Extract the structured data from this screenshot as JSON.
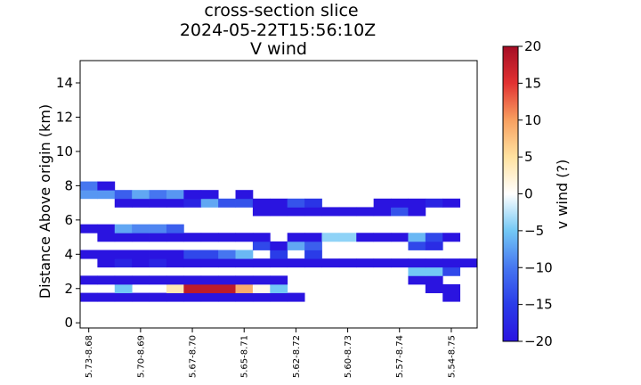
{
  "chart_data": {
    "type": "heatmap",
    "title": [
      "cross-section slice",
      "2024-05-22T15:56:10Z",
      "V wind"
    ],
    "xlabel": "",
    "ylabel": "Distance Above origin (km)",
    "x_tick_labels": [
      "5.73-8.68",
      "5.70-8.69",
      "5.67-8.70",
      "5.65-8.71",
      "5.62-8.72",
      "5.60-8.73",
      "5.57-8.74",
      "5.54-8.75"
    ],
    "y_ticks": [
      0,
      2,
      4,
      6,
      8,
      10,
      12,
      14
    ],
    "ylim": [
      -0.3,
      15.3
    ],
    "x_columns": 23,
    "row_height_km": 0.5,
    "colorbar": {
      "label": "v wind (?)",
      "range": [
        -20,
        20
      ],
      "ticks": [
        20,
        15,
        10,
        5,
        0,
        -5,
        -10,
        -15,
        -20
      ],
      "colormap": "RdYlBu_r",
      "stops": [
        [
          -20,
          "#2a14e0"
        ],
        [
          -15,
          "#2a3ce8"
        ],
        [
          -10,
          "#4676f0"
        ],
        [
          -5,
          "#73c8f5"
        ],
        [
          0,
          "#ffffff"
        ],
        [
          5,
          "#ffe2a0"
        ],
        [
          10,
          "#f8a060"
        ],
        [
          15,
          "#e23232"
        ],
        [
          20,
          "#a50d25"
        ]
      ]
    },
    "rows": [
      {
        "y": 1.5,
        "cells": [
          [
            0,
            -20
          ],
          [
            1,
            -20
          ],
          [
            2,
            -20
          ],
          [
            3,
            -20
          ],
          [
            4,
            -20
          ],
          [
            5,
            -20
          ],
          [
            6,
            -20
          ],
          [
            7,
            -20
          ],
          [
            8,
            -20
          ],
          [
            9,
            -20
          ],
          [
            10,
            -20
          ],
          [
            11,
            -20
          ],
          [
            12,
            -20
          ],
          [
            21,
            -20
          ]
        ]
      },
      {
        "y": 2.0,
        "cells": [
          [
            2,
            -5
          ],
          [
            5,
            4
          ],
          [
            6,
            18
          ],
          [
            7,
            18
          ],
          [
            8,
            18
          ],
          [
            9,
            9
          ],
          [
            10,
            1
          ],
          [
            11,
            -5
          ],
          [
            20,
            -20
          ],
          [
            21,
            -20
          ]
        ]
      },
      {
        "y": 2.5,
        "cells": [
          [
            0,
            -20
          ],
          [
            1,
            -20
          ],
          [
            2,
            -20
          ],
          [
            3,
            -20
          ],
          [
            4,
            -20
          ],
          [
            5,
            -20
          ],
          [
            6,
            -20
          ],
          [
            7,
            -20
          ],
          [
            8,
            -20
          ],
          [
            9,
            -20
          ],
          [
            10,
            -20
          ],
          [
            11,
            -20
          ],
          [
            19,
            -20
          ],
          [
            20,
            -20
          ]
        ]
      },
      {
        "y": 3.0,
        "cells": [
          [
            19,
            -5
          ],
          [
            20,
            -5
          ],
          [
            21,
            -14
          ]
        ]
      },
      {
        "y": 3.5,
        "cells": [
          [
            1,
            -20
          ],
          [
            2,
            -18
          ],
          [
            3,
            -20
          ],
          [
            4,
            -18
          ],
          [
            5,
            -20
          ],
          [
            6,
            -20
          ],
          [
            7,
            -20
          ],
          [
            8,
            -20
          ],
          [
            9,
            -20
          ],
          [
            10,
            -20
          ],
          [
            11,
            -20
          ],
          [
            12,
            -20
          ],
          [
            13,
            -20
          ],
          [
            14,
            -20
          ],
          [
            15,
            -20
          ],
          [
            16,
            -20
          ],
          [
            17,
            -20
          ],
          [
            18,
            -20
          ],
          [
            19,
            -20
          ],
          [
            20,
            -20
          ],
          [
            21,
            -20
          ],
          [
            22,
            -20
          ]
        ]
      },
      {
        "y": 4.0,
        "cells": [
          [
            0,
            -20
          ],
          [
            1,
            -20
          ],
          [
            2,
            -20
          ],
          [
            3,
            -20
          ],
          [
            4,
            -20
          ],
          [
            5,
            -20
          ],
          [
            6,
            -14
          ],
          [
            7,
            -14
          ],
          [
            8,
            -10
          ],
          [
            9,
            -6
          ],
          [
            11,
            -15
          ],
          [
            13,
            -15
          ]
        ]
      },
      {
        "y": 4.5,
        "cells": [
          [
            10,
            -14
          ],
          [
            11,
            -20
          ],
          [
            12,
            -7
          ],
          [
            13,
            -12
          ],
          [
            19,
            -14
          ],
          [
            20,
            -17
          ]
        ]
      },
      {
        "y": 5.0,
        "cells": [
          [
            1,
            -20
          ],
          [
            2,
            -20
          ],
          [
            3,
            -20
          ],
          [
            4,
            -20
          ],
          [
            5,
            -20
          ],
          [
            6,
            -20
          ],
          [
            7,
            -20
          ],
          [
            8,
            -20
          ],
          [
            9,
            -20
          ],
          [
            10,
            -20
          ],
          [
            12,
            -20
          ],
          [
            13,
            -20
          ],
          [
            14,
            -4
          ],
          [
            15,
            -4
          ],
          [
            16,
            -20
          ],
          [
            17,
            -20
          ],
          [
            18,
            -20
          ],
          [
            19,
            -6
          ],
          [
            20,
            -14
          ],
          [
            21,
            -20
          ]
        ]
      },
      {
        "y": 5.5,
        "cells": [
          [
            0,
            -20
          ],
          [
            1,
            -20
          ],
          [
            2,
            -7
          ],
          [
            3,
            -9
          ],
          [
            4,
            -9
          ],
          [
            5,
            -12
          ]
        ]
      },
      {
        "y": 6.5,
        "cells": [
          [
            10,
            -20
          ],
          [
            11,
            -20
          ],
          [
            12,
            -20
          ],
          [
            13,
            -20
          ],
          [
            14,
            -20
          ],
          [
            15,
            -20
          ],
          [
            16,
            -20
          ],
          [
            17,
            -20
          ],
          [
            18,
            -13
          ],
          [
            19,
            -20
          ]
        ]
      },
      {
        "y": 7.0,
        "cells": [
          [
            2,
            -20
          ],
          [
            3,
            -20
          ],
          [
            4,
            -20
          ],
          [
            5,
            -20
          ],
          [
            6,
            -18
          ],
          [
            7,
            -7
          ],
          [
            8,
            -13
          ],
          [
            9,
            -13
          ],
          [
            10,
            -20
          ],
          [
            11,
            -20
          ],
          [
            12,
            -13
          ],
          [
            13,
            -16
          ],
          [
            17,
            -20
          ],
          [
            18,
            -20
          ],
          [
            19,
            -20
          ],
          [
            20,
            -18
          ],
          [
            21,
            -20
          ]
        ]
      },
      {
        "y": 7.5,
        "cells": [
          [
            0,
            -8
          ],
          [
            1,
            -8
          ],
          [
            2,
            -12
          ],
          [
            3,
            -7
          ],
          [
            4,
            -10
          ],
          [
            5,
            -8
          ],
          [
            6,
            -20
          ],
          [
            7,
            -20
          ],
          [
            9,
            -20
          ]
        ]
      },
      {
        "y": 8.0,
        "cells": [
          [
            0,
            -10
          ],
          [
            1,
            -20
          ]
        ]
      }
    ]
  }
}
